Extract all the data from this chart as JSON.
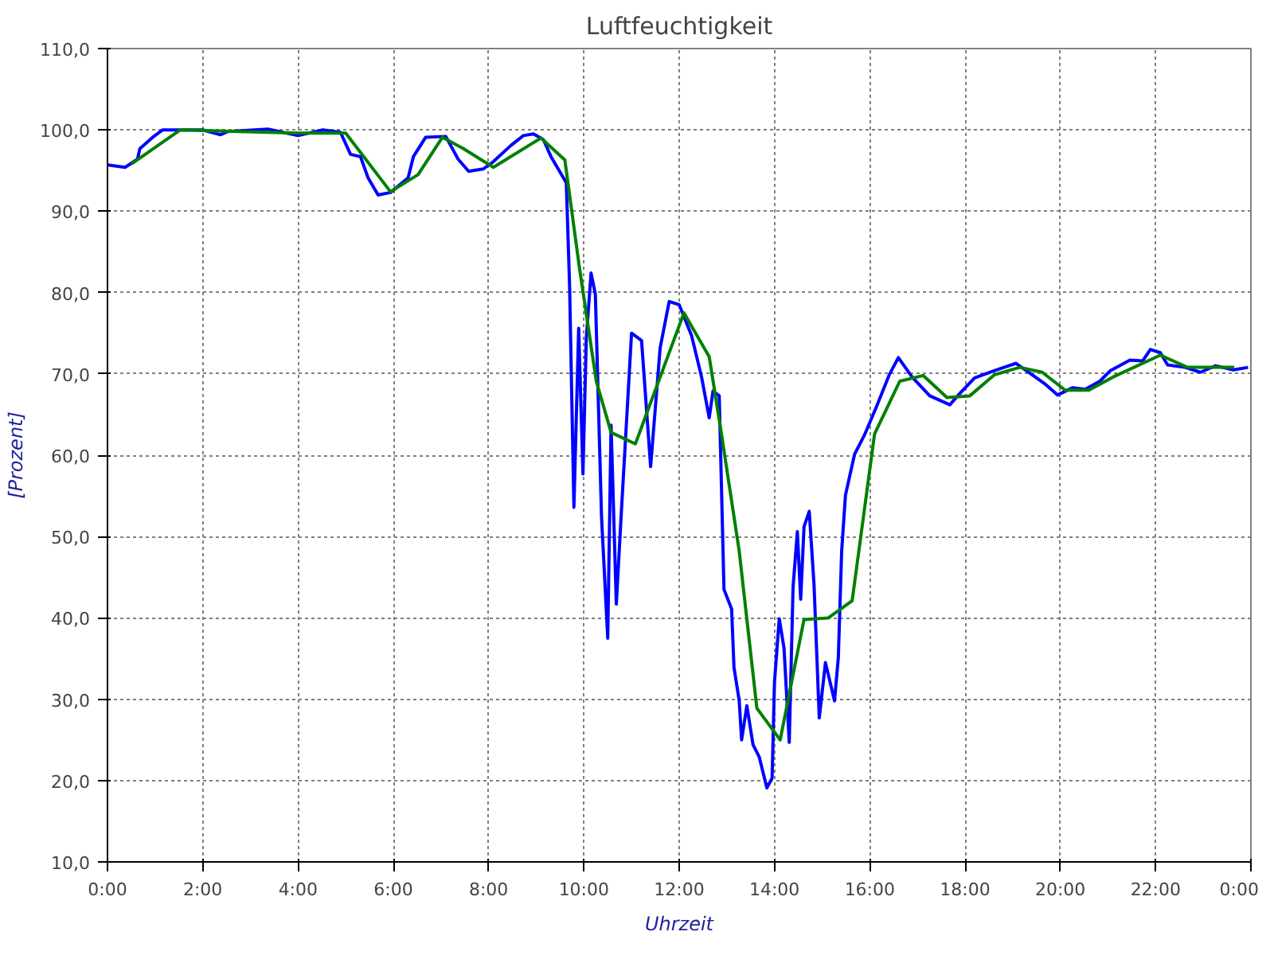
{
  "chart_data": {
    "type": "line",
    "title": "Luftfeuchtigkeit",
    "xlabel": "Uhrzeit",
    "ylabel": "[Prozent]",
    "xlim": [
      0,
      24
    ],
    "ylim": [
      10,
      110
    ],
    "xticks": [
      {
        "value": 0,
        "label": "0:00"
      },
      {
        "value": 2,
        "label": "2:00"
      },
      {
        "value": 4,
        "label": "4:00"
      },
      {
        "value": 6,
        "label": "6:00"
      },
      {
        "value": 8,
        "label": "8:00"
      },
      {
        "value": 10,
        "label": "10:00"
      },
      {
        "value": 12,
        "label": "12:00"
      },
      {
        "value": 14,
        "label": "14:00"
      },
      {
        "value": 16,
        "label": "16:00"
      },
      {
        "value": 18,
        "label": "18:00"
      },
      {
        "value": 20,
        "label": "20:00"
      },
      {
        "value": 22,
        "label": "22:00"
      },
      {
        "value": 24,
        "label": "0:00"
      }
    ],
    "yticks": [
      {
        "value": 10,
        "label": "10,0"
      },
      {
        "value": 20,
        "label": "20,0"
      },
      {
        "value": 30,
        "label": "30,0"
      },
      {
        "value": 40,
        "label": "40,0"
      },
      {
        "value": 50,
        "label": "50,0"
      },
      {
        "value": 60,
        "label": "60,0"
      },
      {
        "value": 70,
        "label": "70,0"
      },
      {
        "value": 80,
        "label": "80,0"
      },
      {
        "value": 90,
        "label": "90,0"
      },
      {
        "value": 100,
        "label": "100,0"
      },
      {
        "value": 110,
        "label": "110,0"
      }
    ],
    "grid": true,
    "marker": "none",
    "line_style": "solid",
    "series": [
      {
        "color": "#0000ff",
        "x": [
          0,
          0.37,
          0.63,
          0.68,
          0.95,
          1.16,
          2.0,
          2.37,
          2.53,
          3.37,
          4.0,
          4.52,
          4.89,
          5.1,
          5.31,
          5.47,
          5.68,
          5.94,
          6.31,
          6.42,
          6.68,
          7.1,
          7.36,
          7.58,
          7.89,
          8.1,
          8.47,
          8.73,
          8.94,
          9.15,
          9.31,
          9.57,
          9.63,
          9.7,
          9.79,
          9.89,
          9.98,
          10.05,
          10.15,
          10.24,
          10.37,
          10.5,
          10.57,
          10.68,
          10.78,
          11.0,
          11.21,
          11.4,
          11.6,
          11.79,
          12.0,
          12.26,
          12.47,
          12.63,
          12.71,
          12.84,
          12.89,
          12.94,
          13.1,
          13.15,
          13.26,
          13.31,
          13.42,
          13.55,
          13.68,
          13.84,
          13.95,
          14.0,
          14.1,
          14.2,
          14.31,
          14.39,
          14.48,
          14.55,
          14.62,
          14.73,
          14.83,
          14.94,
          15.07,
          15.26,
          15.34,
          15.41,
          15.49,
          15.68,
          15.89,
          16.15,
          16.41,
          16.6,
          16.89,
          17.26,
          17.68,
          17.89,
          18.2,
          18.62,
          19.07,
          19.36,
          19.67,
          19.94,
          20.26,
          20.52,
          20.83,
          21.05,
          21.46,
          21.73,
          21.89,
          22.1,
          22.25,
          22.62,
          22.94,
          23.26,
          23.63,
          23.94
        ],
        "values": [
          95.7,
          95.4,
          96.4,
          97.7,
          99.1,
          100.0,
          100.0,
          99.4,
          99.8,
          100.1,
          99.3,
          100.0,
          99.7,
          97.0,
          96.7,
          94.1,
          92.0,
          92.3,
          94.1,
          96.7,
          99.1,
          99.2,
          96.4,
          94.9,
          95.2,
          96.1,
          98.1,
          99.3,
          99.5,
          98.8,
          96.7,
          94.1,
          93.5,
          80.7,
          53.6,
          75.6,
          57.7,
          74.4,
          82.4,
          79.8,
          52.4,
          37.5,
          63.7,
          41.7,
          52.4,
          75.0,
          74.1,
          58.6,
          73.2,
          78.9,
          78.5,
          74.7,
          69.6,
          64.6,
          67.9,
          67.3,
          55.4,
          43.5,
          41.1,
          33.9,
          29.8,
          25.0,
          29.2,
          24.4,
          22.9,
          19.1,
          20.3,
          32.1,
          39.9,
          36.3,
          24.7,
          43.8,
          50.6,
          42.3,
          51.2,
          53.1,
          44.1,
          27.7,
          34.5,
          29.8,
          35.1,
          48.2,
          55.1,
          60.1,
          62.5,
          66.1,
          69.9,
          72.0,
          69.6,
          67.3,
          66.2,
          67.6,
          69.5,
          70.4,
          71.3,
          70.1,
          68.8,
          67.4,
          68.3,
          68.1,
          69.1,
          70.4,
          71.7,
          71.6,
          73.0,
          72.6,
          71.1,
          70.8,
          70.2,
          71.0,
          70.5,
          70.8
        ]
      },
      {
        "color": "#008000",
        "x": [
          0.5,
          1.53,
          4.0,
          5.0,
          5.94,
          6.52,
          7.03,
          7.47,
          8.1,
          9.1,
          9.6,
          9.9,
          10.26,
          10.57,
          11.08,
          12.1,
          12.63,
          12.89,
          13.26,
          13.63,
          14.12,
          14.62,
          15.13,
          15.63,
          16.1,
          16.63,
          17.12,
          17.62,
          18.1,
          18.62,
          19.15,
          19.62,
          20.1,
          20.6,
          21.1,
          22.1,
          22.67,
          23.65
        ],
        "values": [
          95.8,
          100.0,
          99.6,
          99.6,
          92.4,
          94.5,
          99.1,
          97.7,
          95.4,
          99.0,
          96.3,
          83.3,
          69.1,
          62.8,
          61.4,
          77.5,
          72.1,
          62.5,
          48.2,
          28.9,
          25.0,
          39.8,
          40.0,
          42.1,
          62.6,
          69.1,
          69.8,
          67.1,
          67.3,
          69.9,
          70.8,
          70.2,
          68.0,
          68.0,
          69.6,
          72.3,
          70.8,
          70.8
        ]
      }
    ]
  }
}
